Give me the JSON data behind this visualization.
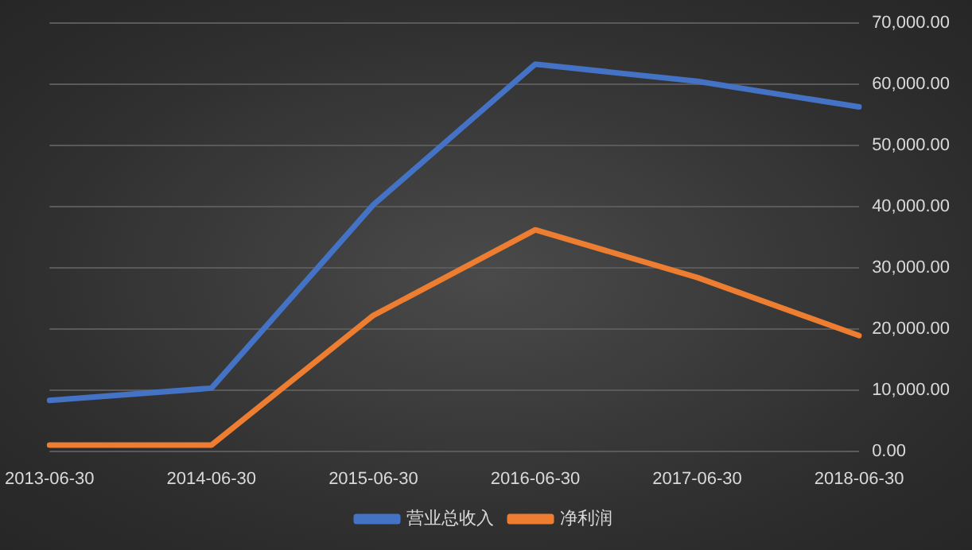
{
  "chart_data": {
    "type": "line",
    "categories": [
      "2013-06-30",
      "2014-06-30",
      "2015-06-30",
      "2016-06-30",
      "2017-06-30",
      "2018-06-30"
    ],
    "series": [
      {
        "name": "营业总收入",
        "color": "#4472c4",
        "values": [
          8300,
          10300,
          40300,
          63300,
          60500,
          56300
        ]
      },
      {
        "name": "净利润",
        "color": "#ed7d31",
        "values": [
          1000,
          1000,
          22200,
          36200,
          28400,
          18900
        ]
      }
    ],
    "ylim": [
      0,
      70000
    ],
    "yticks": [
      {
        "value": 0,
        "label": "0.00"
      },
      {
        "value": 10000,
        "label": "10,000.00"
      },
      {
        "value": 20000,
        "label": "20,000.00"
      },
      {
        "value": 30000,
        "label": "30,000.00"
      },
      {
        "value": 40000,
        "label": "40,000.00"
      },
      {
        "value": 50000,
        "label": "50,000.00"
      },
      {
        "value": 60000,
        "label": "60,000.00"
      },
      {
        "value": 70000,
        "label": "70,000.00"
      }
    ],
    "grid": "y",
    "legend": "bottom",
    "marker": "none",
    "line_style": "solid"
  }
}
